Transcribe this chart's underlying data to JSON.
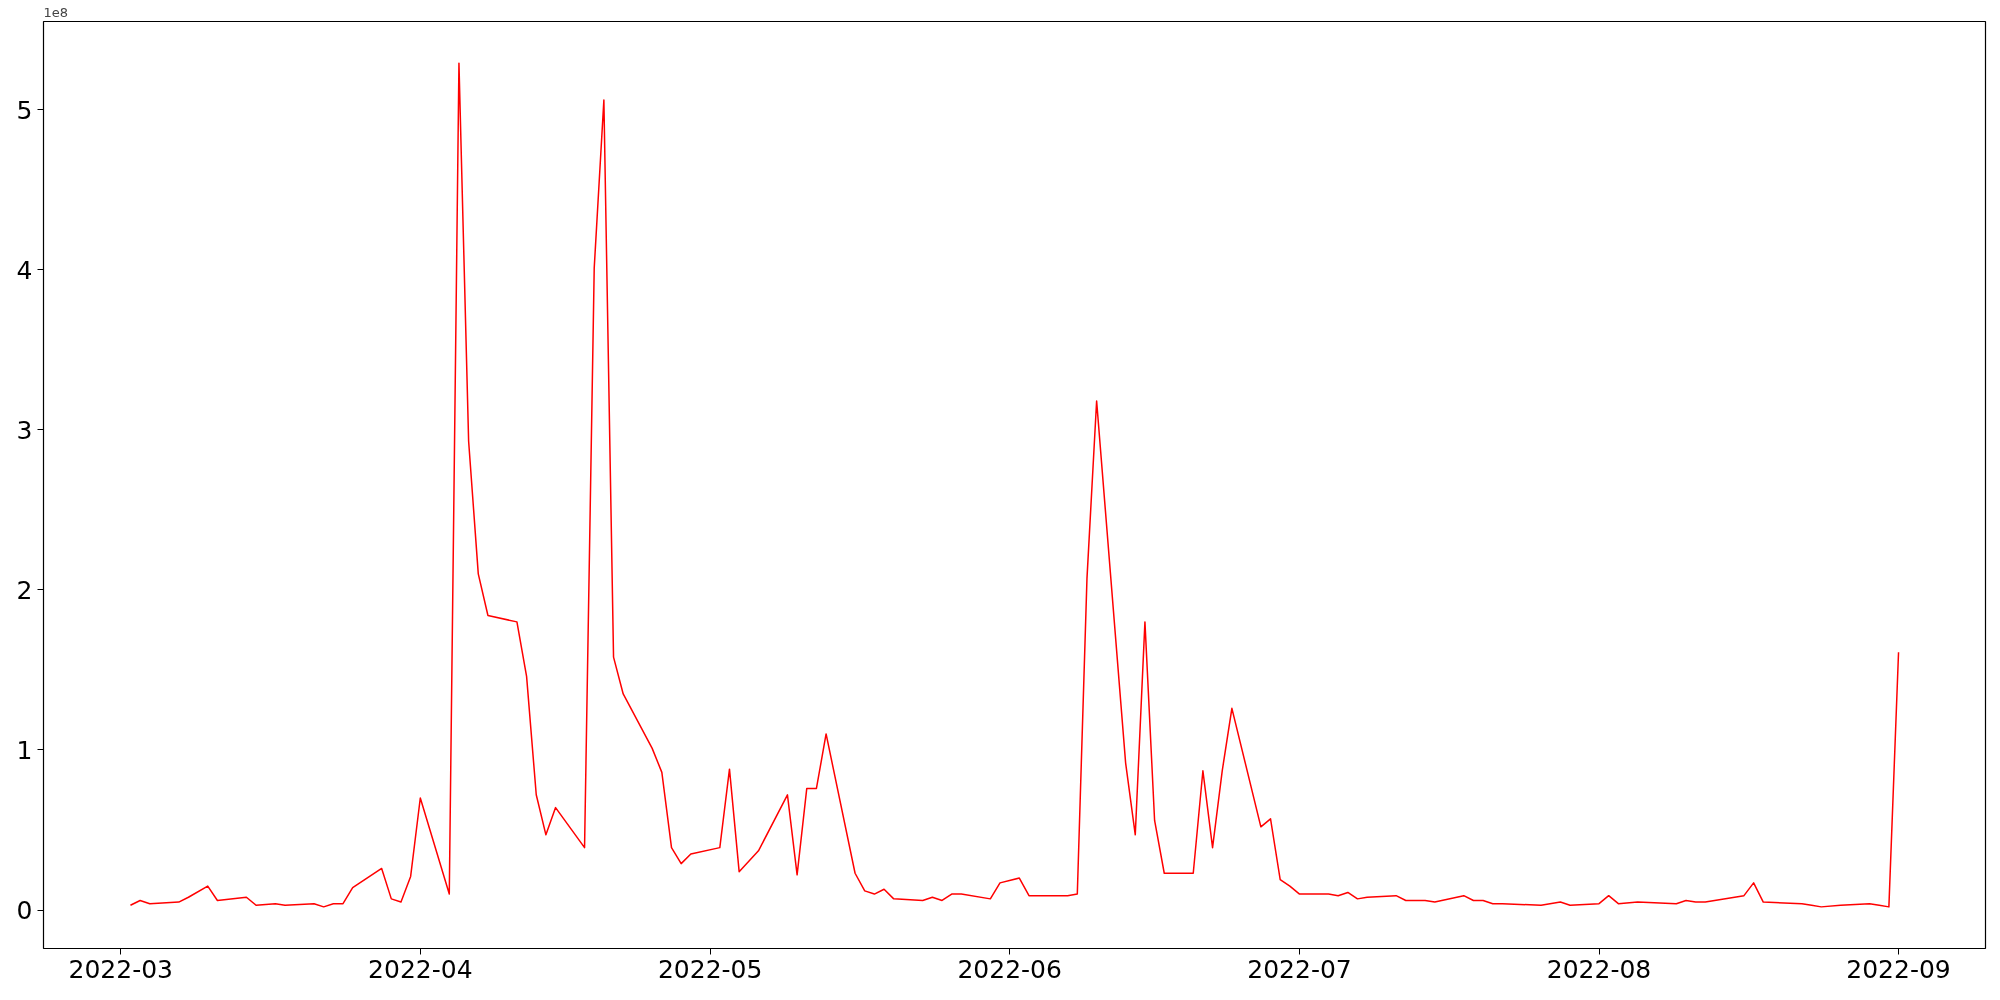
{
  "chart_data": {
    "type": "line",
    "x": [
      "2022-03-02",
      "2022-03-03",
      "2022-03-04",
      "2022-03-07",
      "2022-03-08",
      "2022-03-10",
      "2022-03-11",
      "2022-03-14",
      "2022-03-15",
      "2022-03-17",
      "2022-03-18",
      "2022-03-21",
      "2022-03-22",
      "2022-03-23",
      "2022-03-24",
      "2022-03-25",
      "2022-03-28",
      "2022-03-29",
      "2022-03-30",
      "2022-03-31",
      "2022-04-01",
      "2022-04-04",
      "2022-04-05",
      "2022-04-06",
      "2022-04-07",
      "2022-04-08",
      "2022-04-11",
      "2022-04-12",
      "2022-04-13",
      "2022-04-14",
      "2022-04-15",
      "2022-04-18",
      "2022-04-19",
      "2022-04-20",
      "2022-04-21",
      "2022-04-22",
      "2022-04-25",
      "2022-04-26",
      "2022-04-27",
      "2022-04-28",
      "2022-04-29",
      "2022-05-02",
      "2022-05-03",
      "2022-05-04",
      "2022-05-06",
      "2022-05-09",
      "2022-05-10",
      "2022-05-11",
      "2022-05-12",
      "2022-05-13",
      "2022-05-16",
      "2022-05-17",
      "2022-05-18",
      "2022-05-19",
      "2022-05-20",
      "2022-05-23",
      "2022-05-24",
      "2022-05-25",
      "2022-05-26",
      "2022-05-27",
      "2022-05-30",
      "2022-05-31",
      "2022-06-02",
      "2022-06-03",
      "2022-06-07",
      "2022-06-08",
      "2022-06-09",
      "2022-06-10",
      "2022-06-13",
      "2022-06-14",
      "2022-06-15",
      "2022-06-16",
      "2022-06-17",
      "2022-06-20",
      "2022-06-21",
      "2022-06-22",
      "2022-06-23",
      "2022-06-24",
      "2022-06-27",
      "2022-06-28",
      "2022-06-29",
      "2022-06-30",
      "2022-07-01",
      "2022-07-04",
      "2022-07-05",
      "2022-07-06",
      "2022-07-07",
      "2022-07-08",
      "2022-07-11",
      "2022-07-12",
      "2022-07-13",
      "2022-07-14",
      "2022-07-15",
      "2022-07-18",
      "2022-07-19",
      "2022-07-20",
      "2022-07-21",
      "2022-07-22",
      "2022-07-26",
      "2022-07-28",
      "2022-07-29",
      "2022-08-01",
      "2022-08-02",
      "2022-08-03",
      "2022-08-05",
      "2022-08-09",
      "2022-08-10",
      "2022-08-11",
      "2022-08-12",
      "2022-08-16",
      "2022-08-17",
      "2022-08-18",
      "2022-08-22",
      "2022-08-23",
      "2022-08-24",
      "2022-08-26",
      "2022-08-29",
      "2022-08-30",
      "2022-08-31",
      "2022-09-01"
    ],
    "series": [
      {
        "color": "#ff0000",
        "values": [
          0.03,
          0.06,
          0.04,
          0.05,
          0.08,
          0.15,
          0.06,
          0.08,
          0.03,
          0.04,
          0.03,
          0.04,
          0.02,
          0.04,
          0.04,
          0.14,
          0.26,
          0.07,
          0.05,
          0.21,
          0.7,
          0.1,
          5.29,
          2.93,
          2.1,
          1.84,
          1.8,
          1.46,
          0.72,
          0.47,
          0.64,
          0.39,
          4.01,
          5.06,
          1.58,
          1.35,
          1.01,
          0.86,
          0.39,
          0.29,
          0.35,
          0.39,
          0.88,
          0.24,
          0.37,
          0.72,
          0.22,
          0.76,
          0.76,
          1.1,
          0.23,
          0.12,
          0.1,
          0.13,
          0.07,
          0.06,
          0.08,
          0.06,
          0.1,
          0.1,
          0.07,
          0.17,
          0.2,
          0.09,
          0.09,
          0.1,
          2.07,
          3.18,
          0.92,
          0.47,
          1.8,
          0.56,
          0.23,
          0.23,
          0.87,
          0.39,
          0.87,
          1.26,
          0.52,
          0.57,
          0.19,
          0.15,
          0.1,
          0.1,
          0.09,
          0.11,
          0.07,
          0.08,
          0.09,
          0.06,
          0.06,
          0.06,
          0.05,
          0.09,
          0.06,
          0.06,
          0.04,
          0.04,
          0.03,
          0.05,
          0.03,
          0.04,
          0.09,
          0.04,
          0.05,
          0.04,
          0.06,
          0.05,
          0.05,
          0.09,
          0.17,
          0.05,
          0.04,
          0.03,
          0.02,
          0.03,
          0.04,
          0.03,
          0.02,
          1.61
        ]
      }
    ],
    "xlim": [
      "2022-02-21",
      "2022-09-10"
    ],
    "xticks": [
      {
        "value": "2022-03-01",
        "label": "2022-03"
      },
      {
        "value": "2022-04-01",
        "label": "2022-04"
      },
      {
        "value": "2022-05-01",
        "label": "2022-05"
      },
      {
        "value": "2022-06-01",
        "label": "2022-06"
      },
      {
        "value": "2022-07-01",
        "label": "2022-07"
      },
      {
        "value": "2022-08-01",
        "label": "2022-08"
      },
      {
        "value": "2022-09-01",
        "label": "2022-09"
      }
    ],
    "ylim": [
      -0.24,
      5.55
    ],
    "yticks": [
      0,
      1,
      2,
      3,
      4,
      5
    ],
    "annotations": [
      "1e8"
    ],
    "grid": false,
    "line_style": "solid"
  }
}
